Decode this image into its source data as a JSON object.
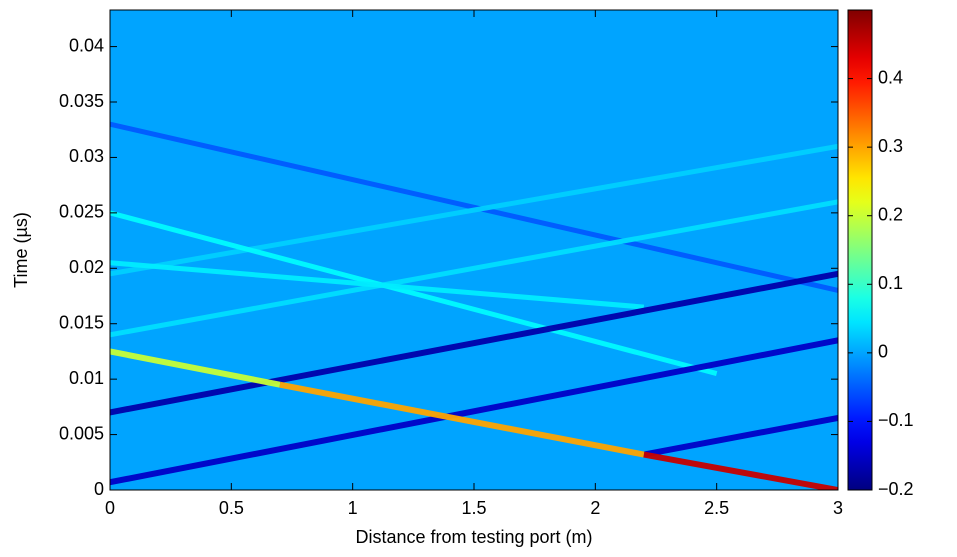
{
  "chart_data": {
    "type": "heatmap",
    "colormap": "jet",
    "x_label": "Distance from testing port (m)",
    "y_label": "Time (µs)",
    "xlim": [
      0,
      3
    ],
    "ylim": [
      0,
      0.0433
    ],
    "xticks": [
      0,
      0.5,
      1,
      1.5,
      2,
      2.5,
      3
    ],
    "yticks": [
      0,
      0.005,
      0.01,
      0.015,
      0.02,
      0.025,
      0.03,
      0.035,
      0.04
    ],
    "clim": [
      -0.2,
      0.5
    ],
    "cticks": [
      {
        "value": -0.2,
        "label": "−0.2"
      },
      {
        "value": -0.1,
        "label": "−0.1"
      },
      0,
      0.1,
      0.2,
      0.3,
      0.4
    ],
    "background": 0,
    "streaks": [
      {
        "x": [
          0,
          3
        ],
        "y": [
          0.033,
          0.018
        ],
        "value": -0.05
      },
      {
        "x": [
          0,
          3
        ],
        "y": [
          0.014,
          0.026
        ],
        "value": 0.04
      },
      {
        "x": [
          0,
          3
        ],
        "y": [
          0.0195,
          0.031
        ],
        "value": 0.03
      },
      {
        "x": [
          0,
          2.5
        ],
        "y": [
          0.025,
          0.0105
        ],
        "value": 0.06
      },
      {
        "x": [
          0,
          2.2
        ],
        "y": [
          0.0205,
          0.0165
        ],
        "value": 0.05
      },
      {
        "x": [
          0,
          3
        ],
        "y": [
          0.0007,
          0.0135
        ],
        "value": -0.15
      },
      {
        "x": [
          0,
          3
        ],
        "y": [
          0.007,
          0.0195
        ],
        "value": -0.17
      },
      {
        "x": [
          2.2,
          3
        ],
        "y": [
          0.0032,
          0.0065
        ],
        "value": -0.15
      },
      {
        "x": [
          0,
          0.7
        ],
        "y": [
          0.0125,
          0.0095
        ],
        "value": 0.2
      },
      {
        "x": [
          0.7,
          2.2
        ],
        "y": [
          0.0095,
          0.0032
        ],
        "value": 0.3
      },
      {
        "x": [
          2.2,
          3
        ],
        "y": [
          0.0032,
          0
        ],
        "value": 0.45
      }
    ]
  }
}
